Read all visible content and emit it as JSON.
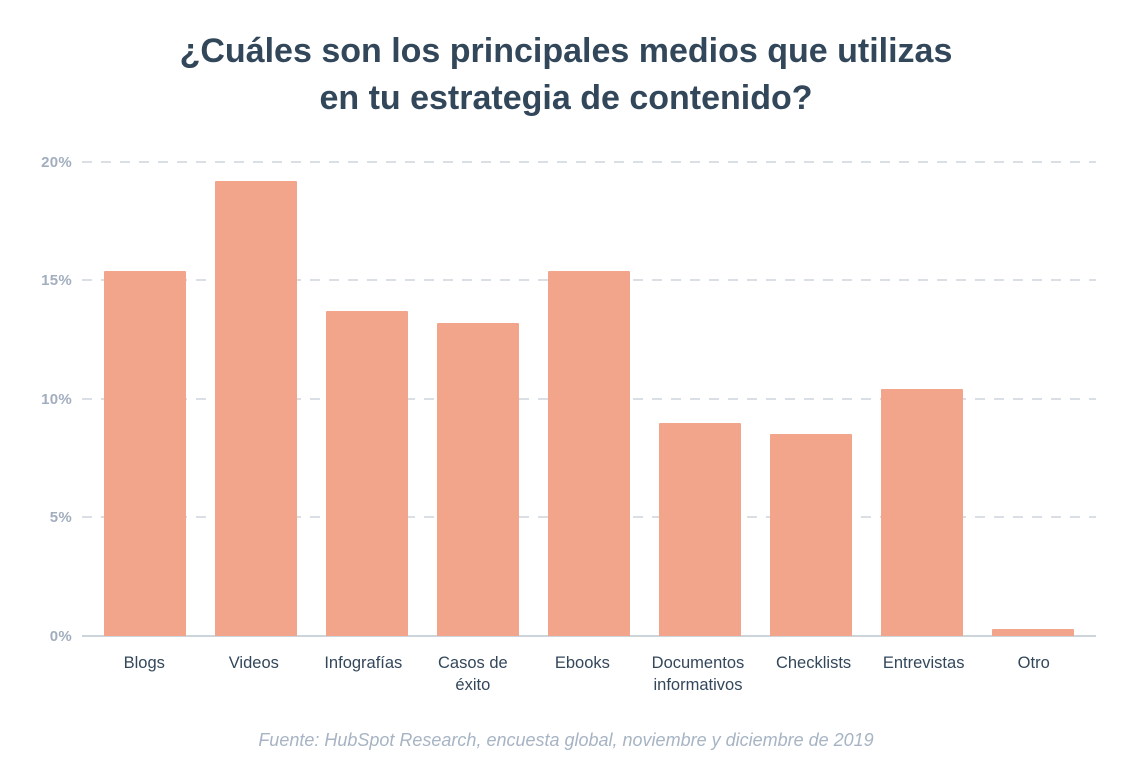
{
  "header": {
    "title_line1": "¿Cuáles son los principales medios que utilizas",
    "title_line2": "en tu estrategia de contenido?"
  },
  "footer": {
    "source": "Fuente: HubSpot Research, encuesta global, noviembre y diciembre de 2019"
  },
  "colors": {
    "bar": "#f3a58c",
    "title_text": "#33475b",
    "y_axis_label": "#a2aebe",
    "x_axis_label": "#33475b",
    "gridline": "#dadfe5",
    "baseline": "#ccd4dc",
    "source_text": "#a7b4c4",
    "background": "#ffffff"
  },
  "chart_data": {
    "type": "bar",
    "title": "¿Cuáles son los principales medios que utilizas en tu estrategia de contenido?",
    "categories": [
      "Blogs",
      "Videos",
      "Infografías",
      "Casos de éxito",
      "Ebooks",
      "Documentos informativos",
      "Checklists",
      "Entrevistas",
      "Otro"
    ],
    "values": [
      15.4,
      19.2,
      13.7,
      13.2,
      15.4,
      9.0,
      8.5,
      10.4,
      0.3
    ],
    "unit": "%",
    "xlabel": "",
    "ylabel": "",
    "ylim": [
      0,
      20
    ],
    "yticks": [
      0,
      5,
      10,
      15,
      20
    ],
    "ytick_labels": [
      "0%",
      "5%",
      "10%",
      "15%",
      "20%"
    ],
    "grid": "dashed horizontal gridlines, solid baseline",
    "legend": false,
    "source": "Fuente: HubSpot Research, encuesta global, noviembre y diciembre de 2019"
  }
}
